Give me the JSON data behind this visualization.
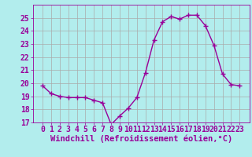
{
  "x": [
    0,
    1,
    2,
    3,
    4,
    5,
    6,
    7,
    8,
    9,
    10,
    11,
    12,
    13,
    14,
    15,
    16,
    17,
    18,
    19,
    20,
    21,
    22,
    23
  ],
  "y": [
    19.8,
    19.2,
    19.0,
    18.9,
    18.9,
    18.9,
    18.7,
    18.5,
    16.85,
    17.5,
    18.1,
    18.9,
    20.8,
    23.3,
    24.7,
    25.1,
    24.9,
    25.2,
    25.2,
    24.4,
    22.9,
    20.7,
    19.9,
    19.8
  ],
  "line_color": "#990099",
  "marker": "+",
  "bg_color": "#b2eded",
  "grid_color": "#aaaaaa",
  "xlabel": "Windchill (Refroidissement éolien,°C)",
  "ylim": [
    17,
    26
  ],
  "yticks": [
    17,
    18,
    19,
    20,
    21,
    22,
    23,
    24,
    25
  ],
  "xticks": [
    0,
    1,
    2,
    3,
    4,
    5,
    6,
    7,
    8,
    9,
    10,
    11,
    12,
    13,
    14,
    15,
    16,
    17,
    18,
    19,
    20,
    21,
    22,
    23
  ],
  "xlabel_fontsize": 7.5,
  "tick_fontsize": 7,
  "line_width": 1.0,
  "marker_size": 4
}
